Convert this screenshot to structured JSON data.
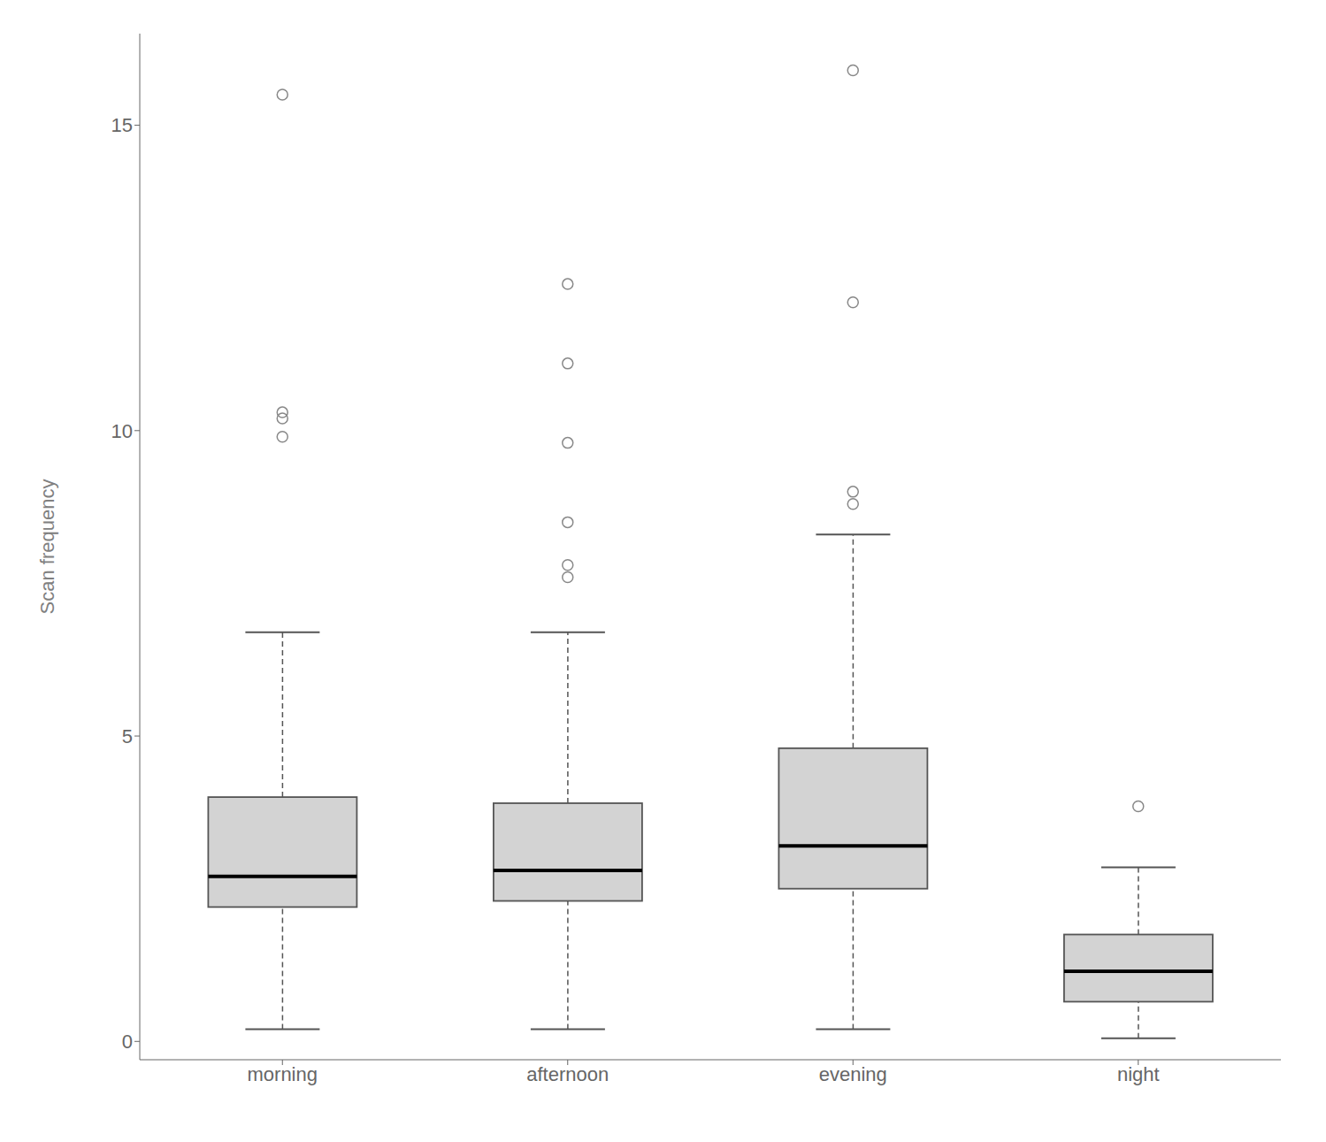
{
  "chart_data": {
    "type": "box",
    "ylabel": "Scan frequency",
    "categories": [
      "morning",
      "afternoon",
      "evening",
      "night"
    ],
    "ylim": [
      -0.3,
      16.5
    ],
    "yticks": [
      0,
      5,
      10,
      15
    ],
    "grid": false,
    "color": "#d3d3d3",
    "boxes": [
      {
        "q1": 2.2,
        "median": 2.7,
        "q3": 4.0,
        "whislo": 0.2,
        "whishi": 6.7,
        "fliers": [
          9.9,
          10.2,
          10.3,
          15.5
        ]
      },
      {
        "q1": 2.3,
        "median": 2.8,
        "q3": 3.9,
        "whislo": 0.2,
        "whishi": 6.7,
        "fliers": [
          7.6,
          7.8,
          8.5,
          9.8,
          11.1,
          12.4
        ]
      },
      {
        "q1": 2.5,
        "median": 3.2,
        "q3": 4.8,
        "whislo": 0.2,
        "whishi": 8.3,
        "fliers": [
          8.8,
          9.0,
          12.1,
          15.9
        ]
      },
      {
        "q1": 0.65,
        "median": 1.15,
        "q3": 1.75,
        "whislo": 0.05,
        "whishi": 2.85,
        "fliers": [
          3.85
        ]
      }
    ]
  }
}
